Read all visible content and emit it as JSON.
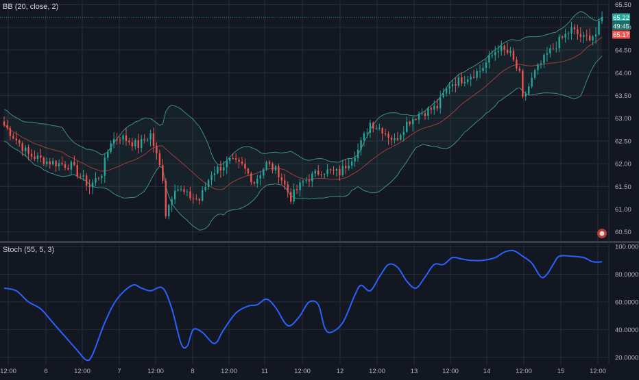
{
  "indicators": {
    "bb_label": "BB (20, close, 2)",
    "stoch_label": "Stoch (55, 5, 3)"
  },
  "price_badges": {
    "last": "65.22",
    "countdown": "49:45",
    "bid": "65.17"
  },
  "colors": {
    "background": "#131722",
    "grid": "#2a2e39",
    "up": "#26a69a",
    "down": "#ef5350",
    "band": "#3d8f8a",
    "basis": "#a33d3b",
    "stoch": "#2962ff"
  },
  "chart_data": [
    {
      "type": "candlestick",
      "title": "BB (20, close, 2)",
      "ylim": [
        60.3,
        65.6
      ],
      "y_ticks": [
        "65.50",
        "65.00",
        "64.50",
        "64.00",
        "63.50",
        "63.00",
        "62.50",
        "62.00",
        "61.50",
        "61.00",
        "60.50"
      ],
      "x_ticks": [
        "12:00",
        "6",
        "12:00",
        "7",
        "12:00",
        "8",
        "12:00",
        "11",
        "12:00",
        "12",
        "12:00",
        "13",
        "12:00",
        "14",
        "12:00",
        "15",
        "12:00"
      ],
      "close_keypoints": [
        [
          0,
          62.85
        ],
        [
          8,
          62.2
        ],
        [
          14,
          62.05
        ],
        [
          22,
          61.95
        ],
        [
          28,
          61.5
        ],
        [
          32,
          61.8
        ],
        [
          35,
          62.5
        ],
        [
          38,
          62.6
        ],
        [
          44,
          62.4
        ],
        [
          48,
          62.65
        ],
        [
          52,
          61.7
        ],
        [
          53,
          60.9
        ],
        [
          56,
          61.5
        ],
        [
          60,
          61.3
        ],
        [
          64,
          61.2
        ],
        [
          68,
          61.8
        ],
        [
          74,
          62.05
        ],
        [
          78,
          61.95
        ],
        [
          82,
          61.6
        ],
        [
          86,
          62.0
        ],
        [
          90,
          61.8
        ],
        [
          94,
          61.25
        ],
        [
          98,
          61.6
        ],
        [
          104,
          61.85
        ],
        [
          110,
          61.8
        ],
        [
          116,
          62.3
        ],
        [
          120,
          62.9
        ],
        [
          124,
          62.75
        ],
        [
          128,
          62.5
        ],
        [
          132,
          62.9
        ],
        [
          136,
          63.1
        ],
        [
          142,
          63.25
        ],
        [
          146,
          63.75
        ],
        [
          150,
          63.85
        ],
        [
          156,
          64.05
        ],
        [
          162,
          64.55
        ],
        [
          166,
          64.4
        ],
        [
          169,
          63.95
        ],
        [
          170,
          63.4
        ],
        [
          174,
          64.0
        ],
        [
          178,
          64.4
        ],
        [
          182,
          64.7
        ],
        [
          186,
          64.95
        ],
        [
          190,
          64.75
        ],
        [
          194,
          64.85
        ],
        [
          196,
          65.22
        ]
      ]
    },
    {
      "type": "line",
      "title": "Stoch (55, 5, 3)",
      "ylim": [
        15,
        102
      ],
      "y_ticks": [
        "100.0000",
        "80.0000",
        "60.0000",
        "40.0000",
        "20.0000"
      ],
      "keypoints": [
        [
          0,
          70
        ],
        [
          4,
          68
        ],
        [
          8,
          60
        ],
        [
          12,
          55
        ],
        [
          16,
          45
        ],
        [
          20,
          35
        ],
        [
          24,
          25
        ],
        [
          27,
          18
        ],
        [
          29,
          22
        ],
        [
          33,
          45
        ],
        [
          37,
          62
        ],
        [
          42,
          72
        ],
        [
          45,
          70
        ],
        [
          48,
          68
        ],
        [
          52,
          70
        ],
        [
          55,
          55
        ],
        [
          58,
          30
        ],
        [
          60,
          28
        ],
        [
          62,
          40
        ],
        [
          65,
          38
        ],
        [
          69,
          30
        ],
        [
          72,
          40
        ],
        [
          76,
          52
        ],
        [
          80,
          57
        ],
        [
          83,
          58
        ],
        [
          86,
          62
        ],
        [
          89,
          56
        ],
        [
          92,
          45
        ],
        [
          94,
          43
        ],
        [
          97,
          50
        ],
        [
          100,
          60
        ],
        [
          103,
          58
        ],
        [
          105,
          42
        ],
        [
          107,
          38
        ],
        [
          111,
          45
        ],
        [
          115,
          65
        ],
        [
          117,
          72
        ],
        [
          120,
          68
        ],
        [
          123,
          78
        ],
        [
          126,
          87
        ],
        [
          129,
          85
        ],
        [
          132,
          75
        ],
        [
          135,
          70
        ],
        [
          138,
          78
        ],
        [
          141,
          87
        ],
        [
          144,
          87
        ],
        [
          147,
          92
        ],
        [
          150,
          91
        ],
        [
          153,
          90
        ],
        [
          157,
          90
        ],
        [
          161,
          92
        ],
        [
          164,
          96
        ],
        [
          167,
          97
        ],
        [
          170,
          93
        ],
        [
          173,
          88
        ],
        [
          176,
          78
        ],
        [
          178,
          80
        ],
        [
          180,
          87
        ],
        [
          182,
          93
        ],
        [
          186,
          93
        ],
        [
          190,
          92
        ],
        [
          193,
          89
        ],
        [
          196,
          89
        ]
      ]
    }
  ]
}
